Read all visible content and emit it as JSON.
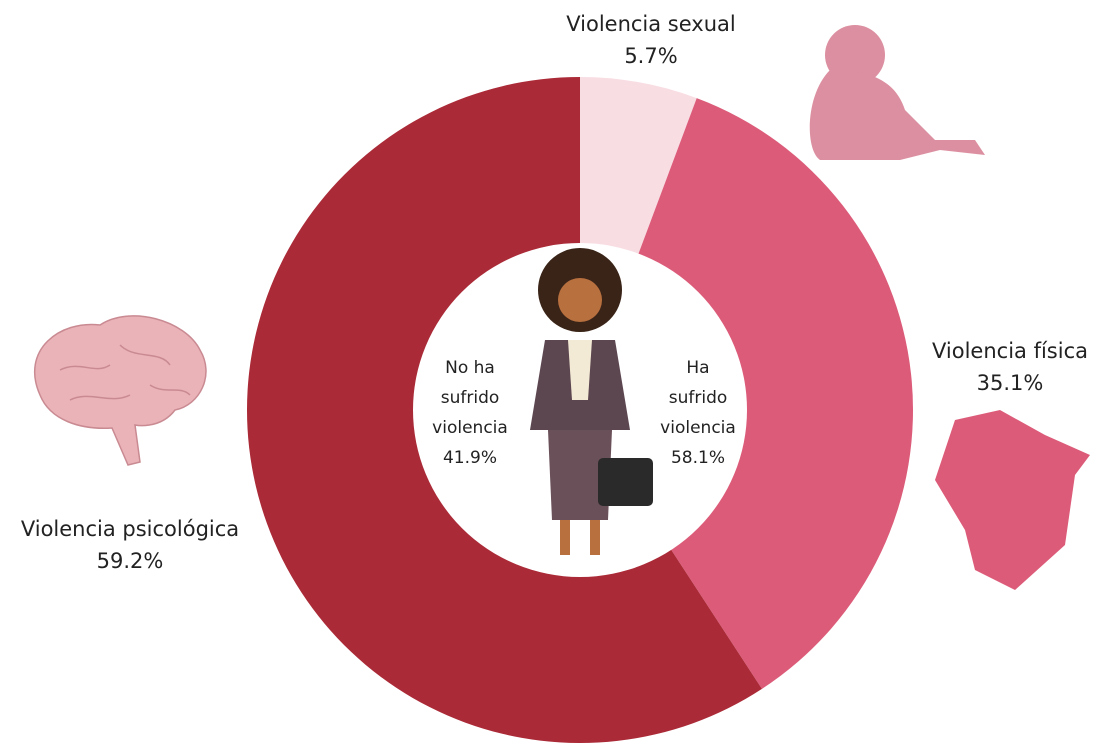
{
  "chart_data": {
    "type": "donut",
    "categories": [
      "Violencia sexual",
      "Violencia física",
      "Violencia psicológica"
    ],
    "values": [
      5.7,
      35.1,
      59.2
    ],
    "value_labels": [
      "5.7%",
      "35.1%",
      "59.2%"
    ],
    "colors": [
      "#f8dde3",
      "#dc5b79",
      "#ab2a37"
    ],
    "center_groups": [
      {
        "lines": [
          "No ha",
          "sufrido",
          "violencia"
        ],
        "value": 41.9,
        "value_label": "41.9%"
      },
      {
        "lines": [
          "Ha",
          "sufrido",
          "violencia"
        ],
        "value": 58.1,
        "value_label": "58.1%"
      }
    ]
  }
}
